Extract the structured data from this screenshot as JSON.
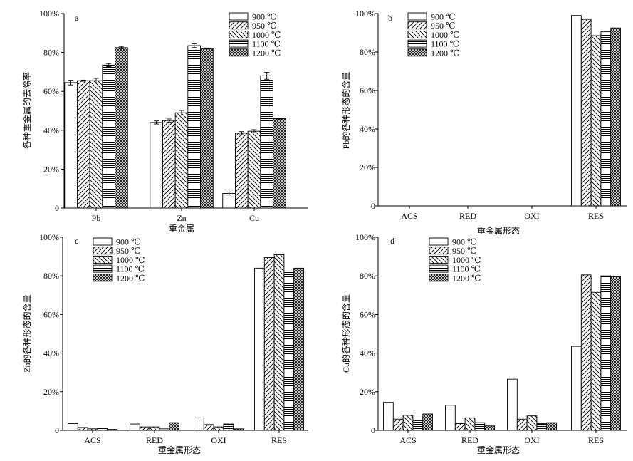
{
  "legend": [
    {
      "label": "900 ℃",
      "pattern": "none"
    },
    {
      "label": "950 ℃",
      "pattern": "fwd"
    },
    {
      "label": "1000 ℃",
      "pattern": "back"
    },
    {
      "label": "1100 ℃",
      "pattern": "horiz"
    },
    {
      "label": "1200 ℃",
      "pattern": "cross"
    }
  ],
  "chart_data": [
    {
      "panel": "a",
      "type": "bar",
      "xlabel": "重金属",
      "ylabel": "各种重金属的去除率",
      "yticks": [
        "0",
        "20%",
        "40%",
        "60%",
        "80%",
        "100%"
      ],
      "ylim": [
        0,
        100
      ],
      "categories": [
        "Pb",
        "Zn",
        "Cu"
      ],
      "error_bars": true,
      "series": [
        {
          "name": "900 ℃",
          "values": [
            64.5,
            44.0,
            7.5
          ],
          "errors": [
            1.2,
            0.8,
            0.8
          ]
        },
        {
          "name": "950 ℃",
          "values": [
            65.5,
            45.0,
            38.5
          ],
          "errors": [
            0.3,
            0.8,
            0.8
          ]
        },
        {
          "name": "1000 ℃",
          "values": [
            65.5,
            49.0,
            39.5
          ],
          "errors": [
            1.2,
            1.2,
            0.8
          ]
        },
        {
          "name": "1100 ℃",
          "values": [
            73.5,
            83.5,
            68.0
          ],
          "errors": [
            0.8,
            1.0,
            1.8
          ]
        },
        {
          "name": "1200 ℃",
          "values": [
            82.5,
            82.0,
            46.0
          ],
          "errors": [
            0.6,
            0.3,
            0.3
          ]
        }
      ]
    },
    {
      "panel": "b",
      "type": "bar",
      "xlabel": "重金属形态",
      "ylabel": "Pb的各种形态的含量",
      "yticks": [
        "0",
        "20%",
        "40%",
        "60%",
        "80%",
        "100%"
      ],
      "ylim": [
        0,
        100
      ],
      "categories": [
        "ACS",
        "RED",
        "OXI",
        "RES"
      ],
      "error_bars": false,
      "series": [
        {
          "name": "900 ℃",
          "values": [
            0,
            0,
            0,
            99.0
          ]
        },
        {
          "name": "950 ℃",
          "values": [
            0,
            0,
            0,
            97.0
          ]
        },
        {
          "name": "1000 ℃",
          "values": [
            0,
            0,
            0,
            88.5
          ]
        },
        {
          "name": "1100 ℃",
          "values": [
            0,
            0,
            0,
            90.5
          ]
        },
        {
          "name": "1200 ℃",
          "values": [
            0,
            0,
            0,
            92.5
          ]
        }
      ]
    },
    {
      "panel": "c",
      "type": "bar",
      "xlabel": "重金属形态",
      "ylabel": "Zn的各种形态的含量",
      "yticks": [
        "0",
        "20%",
        "40%",
        "60%",
        "80%",
        "100%"
      ],
      "ylim": [
        0,
        100
      ],
      "categories": [
        "ACS",
        "RED",
        "OXI",
        "RES"
      ],
      "error_bars": false,
      "series": [
        {
          "name": "900 ℃",
          "values": [
            3.5,
            3.3,
            6.5,
            84.0
          ]
        },
        {
          "name": "950 ℃",
          "values": [
            1.5,
            1.8,
            3.0,
            89.5
          ]
        },
        {
          "name": "1000 ℃",
          "values": [
            0.8,
            1.8,
            1.8,
            91.0
          ]
        },
        {
          "name": "1100 ℃",
          "values": [
            1.2,
            0.8,
            3.3,
            82.5
          ]
        },
        {
          "name": "1200 ℃",
          "values": [
            0.5,
            4.0,
            0.8,
            84.0
          ]
        }
      ]
    },
    {
      "panel": "d",
      "type": "bar",
      "xlabel": "重金属形态",
      "ylabel": "Cu的各种形态的含量",
      "yticks": [
        "0",
        "20%",
        "40%",
        "60%",
        "80%",
        "100%"
      ],
      "ylim": [
        0,
        100
      ],
      "categories": [
        "ACS",
        "RED",
        "OXI",
        "RES"
      ],
      "error_bars": false,
      "series": [
        {
          "name": "900 ℃",
          "values": [
            14.5,
            13.0,
            26.5,
            43.5
          ]
        },
        {
          "name": "950 ℃",
          "values": [
            5.8,
            3.5,
            5.8,
            80.5
          ]
        },
        {
          "name": "1000 ℃",
          "values": [
            7.8,
            6.5,
            7.5,
            71.5
          ]
        },
        {
          "name": "1100 ℃",
          "values": [
            5.0,
            4.0,
            3.5,
            80.0
          ]
        },
        {
          "name": "1200 ℃",
          "values": [
            8.5,
            2.3,
            4.0,
            79.5
          ]
        }
      ]
    }
  ]
}
